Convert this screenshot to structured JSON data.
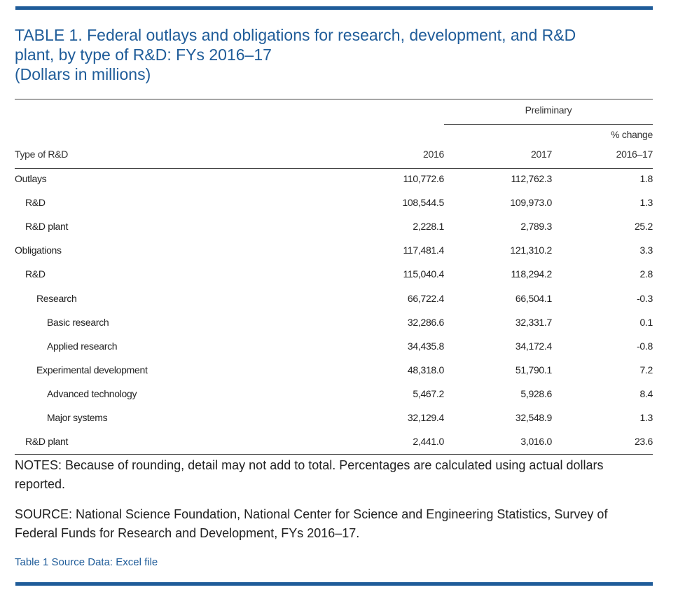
{
  "title": {
    "line1": "TABLE 1. Federal outlays and obligations for research, development, and R&D",
    "line2": "plant, by type of R&D: FYs 2016–17",
    "line3": "(Dollars in millions)"
  },
  "header": {
    "group_label": "Preliminary",
    "type_label": "Type of R&D",
    "col_2016": "2016",
    "col_2017": "2017",
    "pct_line1": "% change",
    "pct_line2": "2016–17"
  },
  "rows": [
    {
      "label": "Outlays",
      "v2016": "110,772.6",
      "v2017": "112,762.3",
      "pct": "1.8",
      "indent": 0
    },
    {
      "label": "R&D",
      "v2016": "108,544.5",
      "v2017": "109,973.0",
      "pct": "1.3",
      "indent": 1
    },
    {
      "label": "R&D plant",
      "v2016": "2,228.1",
      "v2017": "2,789.3",
      "pct": "25.2",
      "indent": 1
    },
    {
      "label": "Obligations",
      "v2016": "117,481.4",
      "v2017": "121,310.2",
      "pct": "3.3",
      "indent": 0
    },
    {
      "label": "R&D",
      "v2016": "115,040.4",
      "v2017": "118,294.2",
      "pct": "2.8",
      "indent": 1
    },
    {
      "label": "Research",
      "v2016": "66,722.4",
      "v2017": "66,504.1",
      "pct": "-0.3",
      "indent": 2
    },
    {
      "label": "Basic research",
      "v2016": "32,286.6",
      "v2017": "32,331.7",
      "pct": "0.1",
      "indent": 3
    },
    {
      "label": "Applied research",
      "v2016": "34,435.8",
      "v2017": "34,172.4",
      "pct": "-0.8",
      "indent": 3
    },
    {
      "label": "Experimental development",
      "v2016": "48,318.0",
      "v2017": "51,790.1",
      "pct": "7.2",
      "indent": 2
    },
    {
      "label": "Advanced technology",
      "v2016": "5,467.2",
      "v2017": "5,928.6",
      "pct": "8.4",
      "indent": 3
    },
    {
      "label": "Major systems",
      "v2016": "32,129.4",
      "v2017": "32,548.9",
      "pct": "1.3",
      "indent": 3
    },
    {
      "label": "R&D plant",
      "v2016": "2,441.0",
      "v2017": "3,016.0",
      "pct": "23.6",
      "indent": 1
    }
  ],
  "notes": "NOTES: Because of rounding, detail may not add to total. Percentages are calculated using actual dollars reported.",
  "source": "SOURCE: National Science Foundation, National Center for Science and Engineering Statistics, Survey of Federal Funds for Research and Development, FYs 2016–17.",
  "source_link": "Table 1 Source Data: Excel file",
  "colors": {
    "accent": "#1f5c99"
  }
}
